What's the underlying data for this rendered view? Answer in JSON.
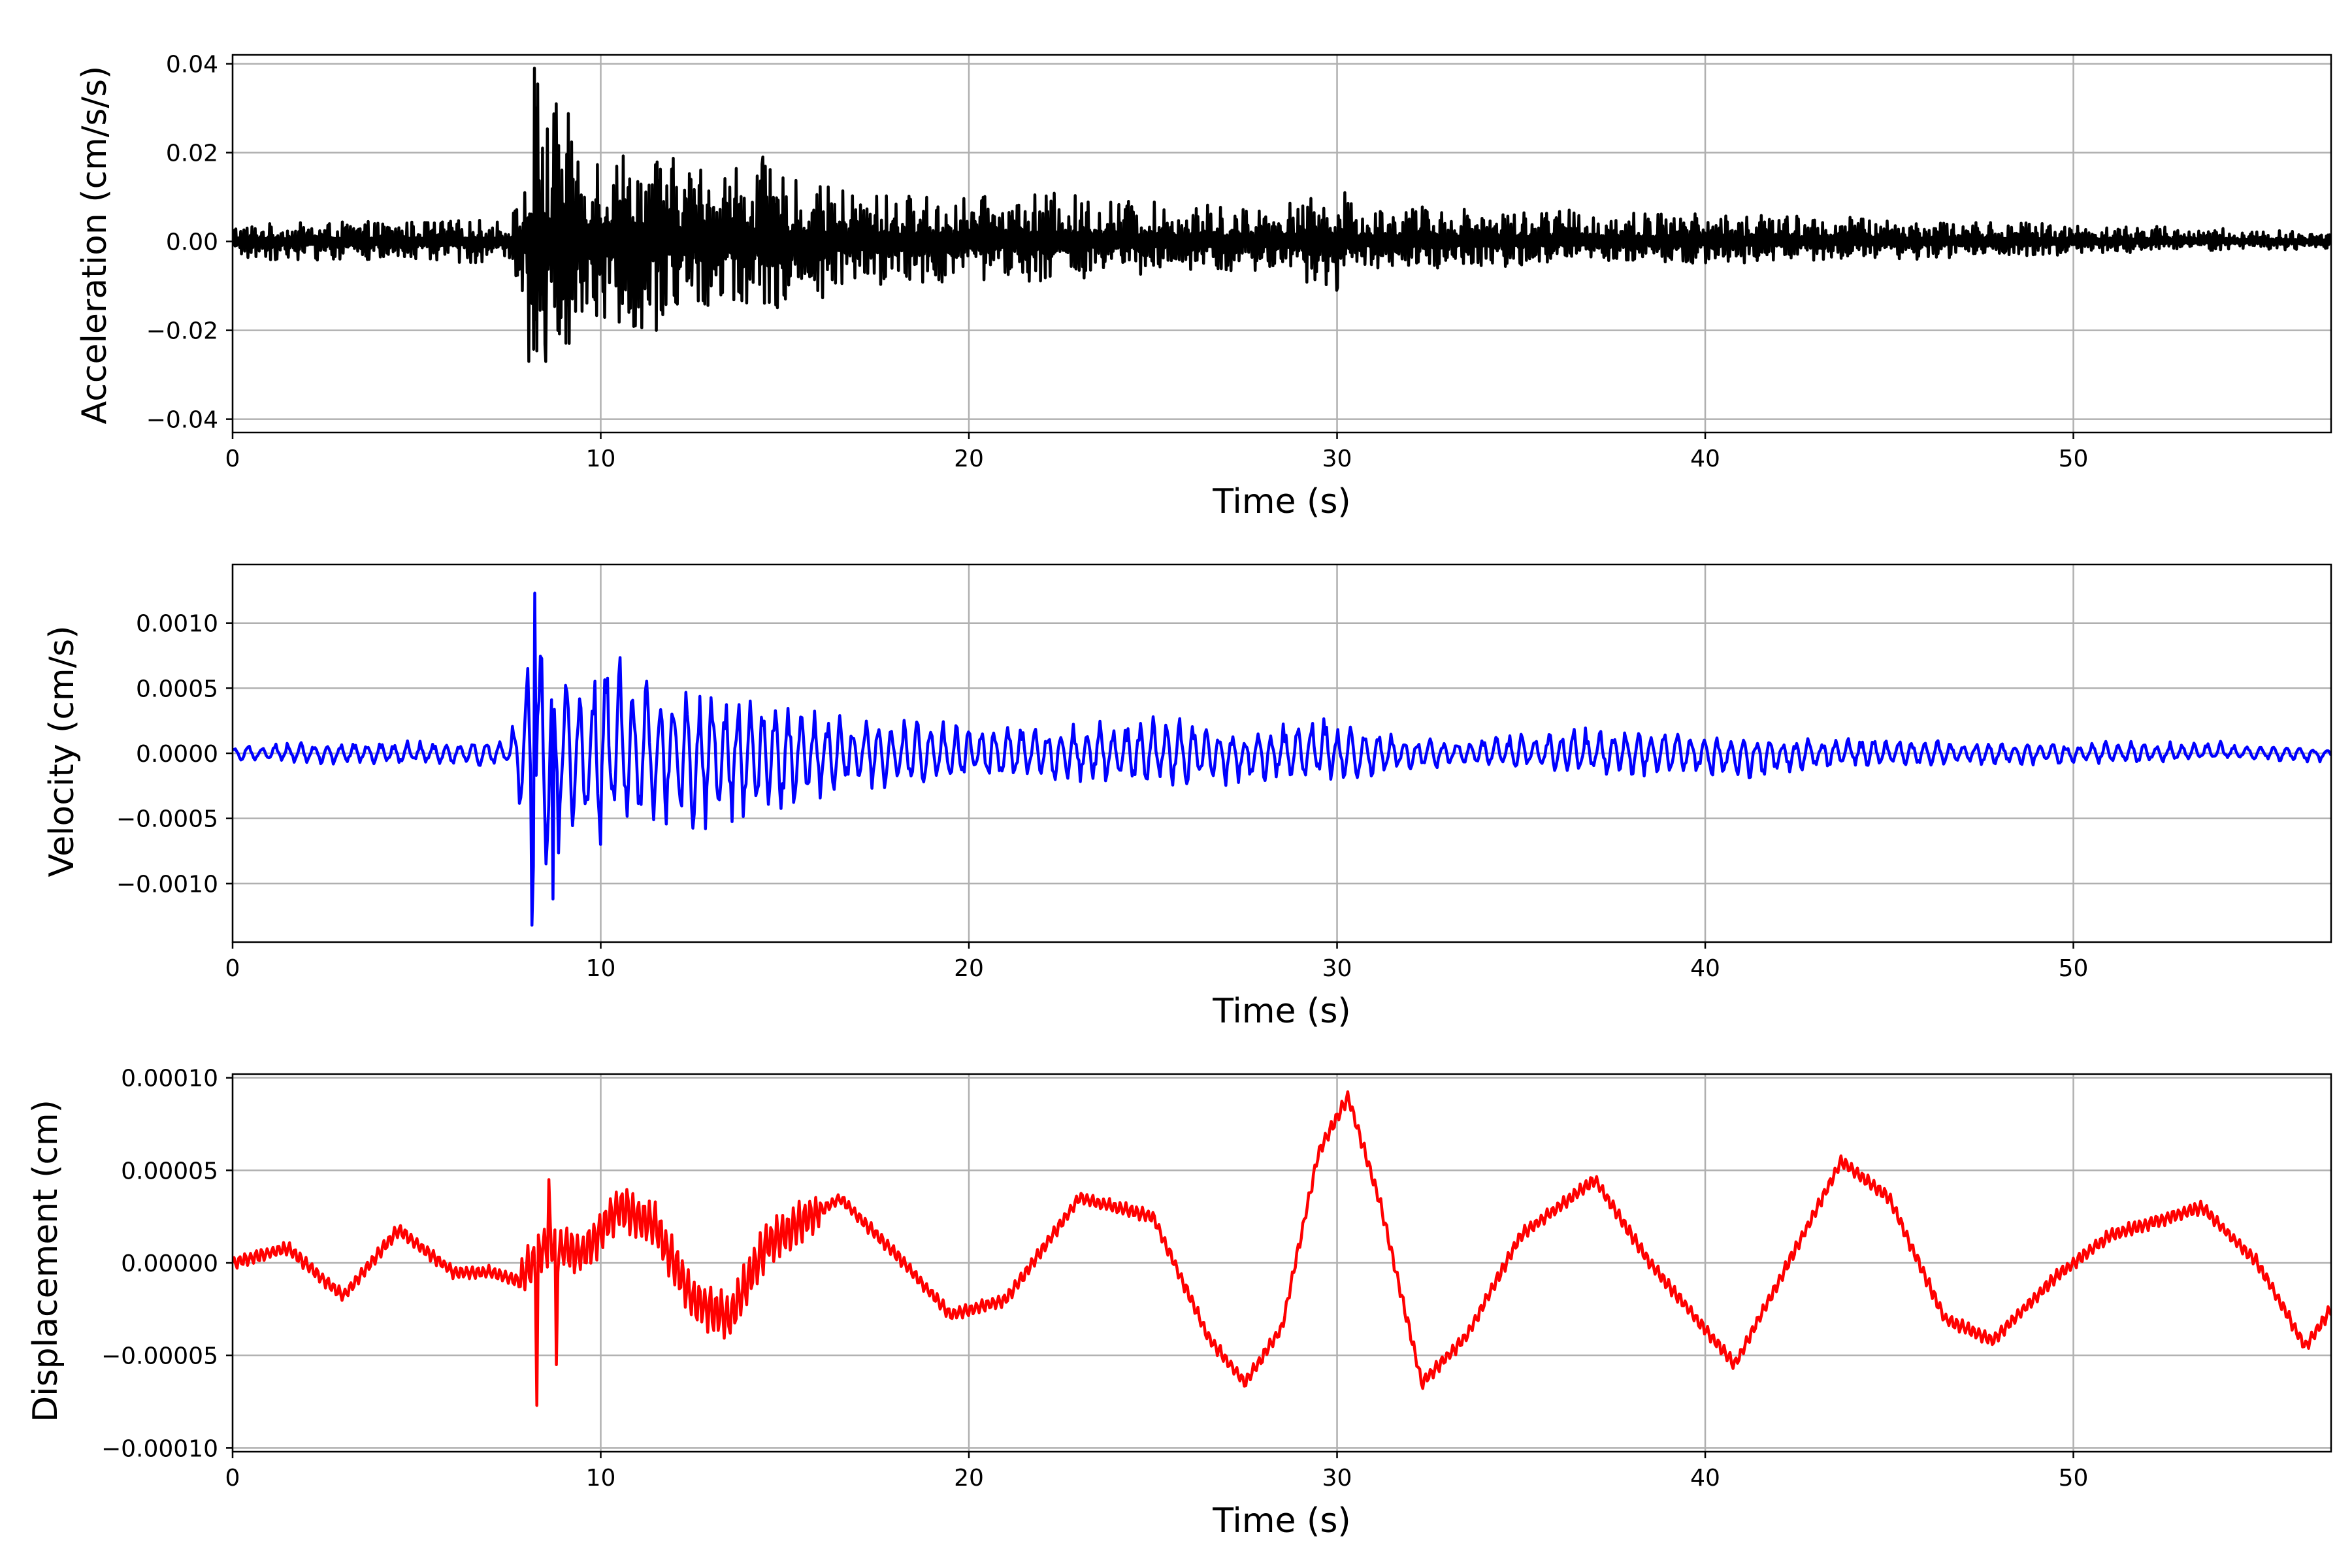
{
  "chart_data": [
    {
      "type": "line",
      "title": "",
      "xlabel": "Time (s)",
      "ylabel": "Acceleration (cm/s/s)",
      "xlim": [
        0,
        57
      ],
      "ylim": [
        -0.043,
        0.042
      ],
      "xticks": [
        0,
        10,
        20,
        30,
        40,
        50
      ],
      "xtick_labels": [
        "0",
        "10",
        "20",
        "30",
        "40",
        "50"
      ],
      "yticks": [
        -0.04,
        -0.02,
        0.0,
        0.02,
        0.04
      ],
      "ytick_labels": [
        "−0.04",
        "−0.02",
        "0.00",
        "0.02",
        "0.04"
      ],
      "grid": true,
      "series": [
        {
          "color": "#000000",
          "envelope_x": [
            0,
            7.5,
            7.9,
            8.1,
            8.3,
            8.6,
            8.9,
            9.5,
            10.5,
            11.5,
            12.5,
            14.0,
            15.5,
            17.5,
            20.0,
            22.5,
            25.0,
            27.5,
            29.5,
            30.0,
            30.5,
            33.0,
            37.0,
            42.0,
            46.0,
            50.0,
            54.0,
            57.0
          ],
          "envelope_upper": [
            0.004,
            0.005,
            0.012,
            0.02,
            0.039,
            0.029,
            0.031,
            0.025,
            0.022,
            0.02,
            0.018,
            0.019,
            0.013,
            0.011,
            0.01,
            0.011,
            0.009,
            0.008,
            0.01,
            0.011,
            0.008,
            0.008,
            0.007,
            0.006,
            0.005,
            0.004,
            0.003,
            0.002
          ],
          "envelope_lower": [
            -0.004,
            -0.005,
            -0.012,
            -0.027,
            -0.026,
            -0.027,
            -0.025,
            -0.02,
            -0.019,
            -0.02,
            -0.015,
            -0.016,
            -0.014,
            -0.01,
            -0.009,
            -0.009,
            -0.008,
            -0.007,
            -0.01,
            -0.011,
            -0.006,
            -0.006,
            -0.005,
            -0.005,
            -0.004,
            -0.003,
            -0.002,
            -0.002
          ],
          "spikes": [
            [
              8.2,
              0.039
            ],
            [
              8.05,
              -0.027
            ],
            [
              8.5,
              -0.027
            ],
            [
              8.8,
              0.031
            ],
            [
              11.5,
              -0.02
            ],
            [
              14.4,
              0.019
            ],
            [
              30.0,
              -0.011
            ],
            [
              30.2,
              0.011
            ]
          ]
        }
      ]
    },
    {
      "type": "line",
      "title": "",
      "xlabel": "Time (s)",
      "ylabel": "Velocity (cm/s)",
      "xlim": [
        0,
        57
      ],
      "ylim": [
        -0.00145,
        0.00145
      ],
      "xticks": [
        0,
        10,
        20,
        30,
        40,
        50
      ],
      "xtick_labels": [
        "0",
        "10",
        "20",
        "30",
        "40",
        "50"
      ],
      "yticks": [
        -0.001,
        -0.0005,
        0.0,
        0.0005,
        0.001
      ],
      "ytick_labels": [
        "−0.0010",
        "−0.0005",
        "0.0000",
        "0.0005",
        "0.0010"
      ],
      "grid": true,
      "series": [
        {
          "color": "#0000ff",
          "envelope_x": [
            0,
            3.5,
            7.5,
            7.9,
            8.2,
            8.6,
            9.0,
            10.0,
            11.0,
            12.5,
            14.5,
            16.5,
            19.0,
            22.0,
            25.5,
            27.5,
            29.5,
            30.5,
            33.0,
            36.5,
            39.0,
            41.0,
            44.0,
            48.0,
            52.0,
            54.0,
            57.0
          ],
          "envelope_upper": [
            7e-05,
            0.0001,
            0.0001,
            0.0007,
            0.00123,
            0.0009,
            0.0006,
            0.00091,
            0.0006,
            0.0005,
            0.0004,
            0.0003,
            0.00025,
            0.00022,
            0.0003,
            0.00012,
            0.00035,
            0.0002,
            0.0001,
            0.00022,
            0.0002,
            0.0001,
            0.00013,
            8e-05,
            0.0001,
            0.0001,
            2e-05
          ],
          "envelope_lower": [
            -5e-05,
            -0.0001,
            -0.0001,
            -0.0006,
            -0.00132,
            -0.0011,
            -0.0007,
            -0.0007,
            -0.0005,
            -0.0006,
            -0.0006,
            -0.0003,
            -0.00025,
            -0.00022,
            -0.00025,
            -0.00025,
            -0.00022,
            -0.00022,
            -0.0001,
            -0.00015,
            -0.0002,
            -0.00025,
            -0.0001,
            -0.0001,
            -8e-05,
            -3e-05,
            -0.0001
          ],
          "spikes": [
            [
              8.2,
              0.00123
            ],
            [
              8.15,
              -0.00132
            ],
            [
              8.7,
              -0.00112
            ],
            [
              10.0,
              0.00091
            ],
            [
              10.0,
              -0.0007
            ]
          ]
        }
      ]
    },
    {
      "type": "line",
      "title": "",
      "xlabel": "Time (s)",
      "ylabel": "Displacement (cm)",
      "xlim": [
        0,
        57
      ],
      "ylim": [
        -0.000102,
        0.000102
      ],
      "xticks": [
        0,
        10,
        20,
        30,
        40,
        50
      ],
      "xtick_labels": [
        "0",
        "10",
        "20",
        "30",
        "40",
        "50"
      ],
      "yticks": [
        -0.0001,
        -5e-05,
        0.0,
        5e-05,
        0.0001
      ],
      "ytick_labels": [
        "−0.00010",
        "−0.00005",
        "0.00000",
        "0.00005",
        "0.00010"
      ],
      "grid": true,
      "series": [
        {
          "color": "#ff0000",
          "x": [
            0,
            1.5,
            3.0,
            4.5,
            6.0,
            7.0,
            7.8,
            8.5,
            9.5,
            10.5,
            11.5,
            12.5,
            13.5,
            14.5,
            16.5,
            18.0,
            19.5,
            21.0,
            23.0,
            25.0,
            26.5,
            27.5,
            28.5,
            29.5,
            30.3,
            31.2,
            32.3,
            33.5,
            35.0,
            37.0,
            38.5,
            40.8,
            42.0,
            43.7,
            45.0,
            46.5,
            47.8,
            49.5,
            51.0,
            53.5,
            55.0,
            56.3,
            57.0
          ],
          "y": [
            0.0,
            8e-06,
            -1.8e-05,
            1.8e-05,
            -5e-06,
            -5e-06,
            -1e-05,
            1e-05,
            5e-06,
            3e-05,
            2e-05,
            -2e-05,
            -3e-05,
            1e-05,
            3.5e-05,
            5e-06,
            -2.8e-05,
            -2e-05,
            3.5e-05,
            2.5e-05,
            -4e-05,
            -6.5e-05,
            -3.5e-05,
            6e-05,
            9e-05,
            3e-05,
            -6.5e-05,
            -4e-05,
            1.5e-05,
            4.5e-05,
            0.0,
            -5.5e-05,
            -1e-05,
            5.5e-05,
            3.5e-05,
            -3e-05,
            -4.2e-05,
            -8e-06,
            1.5e-05,
            3e-05,
            0.0,
            -4.5e-05,
            -2.5e-05
          ],
          "spikes": [
            [
              8.25,
              -7.7e-05
            ],
            [
              8.6,
              4.5e-05
            ],
            [
              8.8,
              -5.5e-05
            ]
          ]
        }
      ]
    }
  ]
}
